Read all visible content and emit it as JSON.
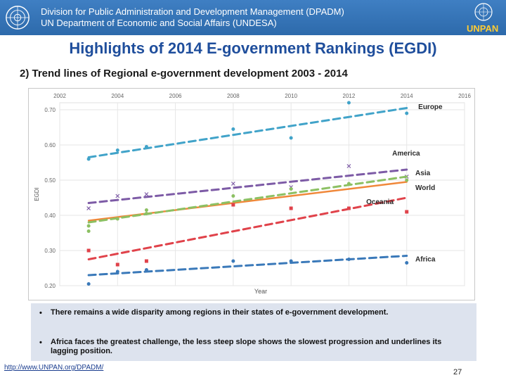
{
  "header": {
    "line1": "Division for Public Administration and Development Management (DPADM)",
    "line2": "UN Department of Economic and Social Affairs (UNDESA)",
    "brand": "UNPAN"
  },
  "slide_title": "Highlights of 2014 E-government Rankings (EGDI)",
  "subtitle": "2) Trend lines of Regional e-government development  2003 - 2014",
  "chart_data": {
    "type": "scatter",
    "xlabel": "Year",
    "ylabel": "EGDI",
    "xlim": [
      2002,
      2016
    ],
    "ylim": [
      0.2,
      0.72
    ],
    "x_ticks": [
      "2002",
      "2004",
      "2006",
      "2008",
      "2010",
      "2012",
      "2014",
      "2016"
    ],
    "y_ticks": [
      "0.20",
      "0.30",
      "0.40",
      "0.50",
      "0.60",
      "0.70"
    ],
    "grid": true,
    "series": [
      {
        "name": "Europe",
        "color": "#41a3c9",
        "marker": "circle",
        "points": [
          [
            2003,
            0.56
          ],
          [
            2004,
            0.585
          ],
          [
            2005,
            0.595
          ],
          [
            2008,
            0.645
          ],
          [
            2010,
            0.62
          ],
          [
            2012,
            0.72
          ],
          [
            2014,
            0.69
          ]
        ],
        "trend": [
          [
            2003,
            0.565
          ],
          [
            2014,
            0.705
          ]
        ]
      },
      {
        "name": "America",
        "color": "#4a4a4a",
        "marker": "x",
        "points": [],
        "trend": []
      },
      {
        "name": "Asia",
        "color": "#7d5ba6",
        "marker": "x",
        "points": [
          [
            2003,
            0.42
          ],
          [
            2004,
            0.455
          ],
          [
            2005,
            0.46
          ],
          [
            2008,
            0.49
          ],
          [
            2010,
            0.48
          ],
          [
            2012,
            0.54
          ],
          [
            2014,
            0.51
          ]
        ],
        "trend": [
          [
            2003,
            0.435
          ],
          [
            2014,
            0.53
          ]
        ]
      },
      {
        "name": "World",
        "color": "#f0883a",
        "marker": "none",
        "points": [],
        "trend": [
          [
            2003,
            0.385
          ],
          [
            2014,
            0.495
          ]
        ]
      },
      {
        "name": "",
        "color": "#8cc063",
        "marker": "circle",
        "points": [
          [
            2003,
            0.355
          ],
          [
            2003,
            0.37
          ],
          [
            2004,
            0.39
          ],
          [
            2005,
            0.415
          ],
          [
            2005,
            0.405
          ],
          [
            2008,
            0.455
          ],
          [
            2010,
            0.475
          ],
          [
            2012,
            0.49
          ],
          [
            2014,
            0.5
          ]
        ],
        "trend": [
          [
            2003,
            0.38
          ],
          [
            2014,
            0.51
          ]
        ]
      },
      {
        "name": "Oceania",
        "color": "#e0424a",
        "marker": "square",
        "points": [
          [
            2003,
            0.3
          ],
          [
            2004,
            0.26
          ],
          [
            2005,
            0.27
          ],
          [
            2008,
            0.43
          ],
          [
            2010,
            0.42
          ],
          [
            2012,
            0.42
          ],
          [
            2014,
            0.41
          ]
        ],
        "trend": [
          [
            2003,
            0.275
          ],
          [
            2014,
            0.45
          ]
        ]
      },
      {
        "name": "Africa",
        "color": "#3a79b9",
        "marker": "circle",
        "points": [
          [
            2003,
            0.205
          ],
          [
            2004,
            0.24
          ],
          [
            2005,
            0.245
          ],
          [
            2008,
            0.27
          ],
          [
            2010,
            0.27
          ],
          [
            2012,
            0.275
          ],
          [
            2014,
            0.265
          ]
        ],
        "trend": [
          [
            2003,
            0.23
          ],
          [
            2014,
            0.285
          ]
        ]
      }
    ]
  },
  "bullets": [
    {
      "marker": "•",
      "text": "There remains a wide disparity among regions in their states of e-government development."
    },
    {
      "marker": "•",
      "text": "Africa faces the greatest challenge, the less steep slope shows the slowest progression and underlines its lagging position."
    }
  ],
  "footer": {
    "url": "http://www.UNPAN.org/DPADM/",
    "page": "27"
  }
}
